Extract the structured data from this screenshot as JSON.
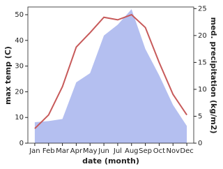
{
  "chart_data": {
    "type": "line",
    "categories": [
      "Jan",
      "Feb",
      "Mar",
      "Apr",
      "May",
      "Jun",
      "Jul",
      "Aug",
      "Sep",
      "Oct",
      "Nov",
      "Dec"
    ],
    "xlabel": "date (month)",
    "ylabel": "max temp (C)",
    "y2label": "med. precipitation (kg/m2)",
    "ylim": [
      0,
      53
    ],
    "yticks": [
      0,
      10,
      20,
      30,
      40,
      50
    ],
    "y2lim": [
      0,
      25.3
    ],
    "y2ticks": [
      0,
      5,
      10,
      15,
      20,
      25
    ],
    "series": [
      {
        "name": "med. precipitation",
        "color": "#b4bff0",
        "axis": "y2",
        "fill": true,
        "values": [
          3.9,
          4.1,
          4.5,
          11.3,
          13,
          20,
          22,
          24.9,
          17.5,
          12.6,
          7.1,
          3.2
        ]
      },
      {
        "name": "max temp",
        "color": "#c75a5a",
        "axis": "y",
        "fill": false,
        "values": [
          5.7,
          11,
          22,
          37.4,
          43,
          49,
          48,
          50,
          45,
          31.4,
          19,
          11
        ]
      }
    ]
  }
}
